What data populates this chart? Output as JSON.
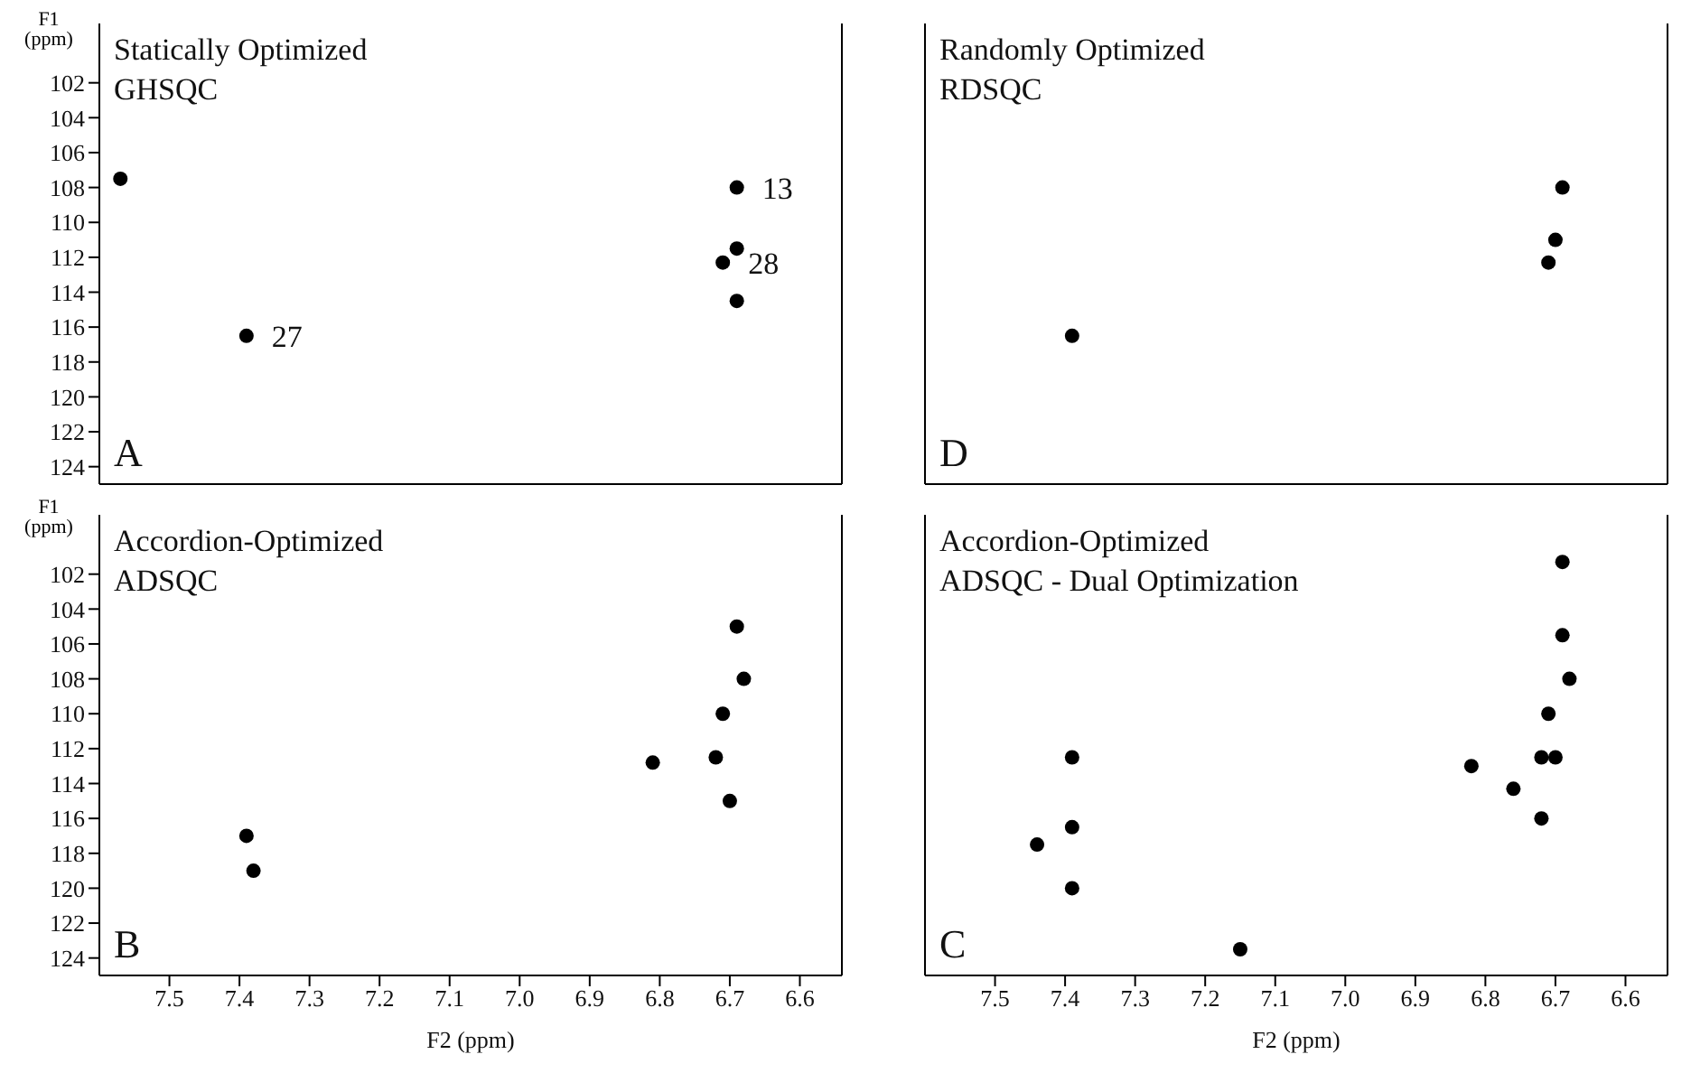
{
  "chart_data": [
    {
      "type": "scatter",
      "title": "Statically Optimized",
      "subtitle": "GHSQC",
      "ylabel": "F1 (ppm)",
      "annotations": [
        "A",
        {
          "text": "13",
          "x": 6.69,
          "y": 108
        },
        {
          "text": "27",
          "x": 7.39,
          "y": 116.5
        },
        {
          "text": "28",
          "x": 6.71,
          "y": 112.3
        }
      ],
      "x": [
        7.57,
        7.39,
        6.69,
        6.71,
        6.69,
        6.69
      ],
      "values": [
        107.5,
        116.5,
        108,
        112.3,
        111.5,
        114.5
      ],
      "color": "#000000",
      "marker": "circle",
      "xlim": [
        7.6,
        6.54
      ],
      "xticks": [
        7.5,
        7.4,
        7.3,
        7.2,
        7.1,
        7.0,
        6.9,
        6.8,
        6.7,
        6.6
      ],
      "ylim": [
        125,
        98.6
      ],
      "yticks": [
        102,
        104,
        106,
        108,
        110,
        112,
        114,
        116,
        118,
        120,
        122,
        124
      ],
      "tick_labels": "y",
      "grid": false,
      "legend": false
    },
    {
      "type": "scatter",
      "title": "Randomly Optimized",
      "subtitle": "RDSQC",
      "annotations": [
        "D"
      ],
      "x": [
        7.39,
        6.69,
        6.71,
        6.7
      ],
      "values": [
        116.5,
        108,
        112.3,
        111
      ],
      "color": "#000000",
      "marker": "circle",
      "xlim": [
        7.6,
        6.54
      ],
      "xticks": [
        7.5,
        7.4,
        7.3,
        7.2,
        7.1,
        7.0,
        6.9,
        6.8,
        6.7,
        6.6
      ],
      "ylim": [
        125,
        98.6
      ],
      "yticks": [
        102,
        104,
        106,
        108,
        110,
        112,
        114,
        116,
        118,
        120,
        122,
        124
      ],
      "tick_labels": false,
      "grid": false,
      "legend": false
    },
    {
      "type": "scatter",
      "title": "Accordion-Optimized",
      "subtitle": "ADSQC",
      "xlabel": "F2 (ppm)",
      "ylabel": "F1 (ppm)",
      "annotations": [
        "B"
      ],
      "x": [
        7.39,
        7.38,
        6.69,
        6.68,
        6.71,
        6.72,
        6.7,
        6.81
      ],
      "values": [
        117,
        119,
        105,
        108,
        110,
        112.5,
        115,
        112.8
      ],
      "color": "#000000",
      "marker": "circle",
      "xlim": [
        7.6,
        6.54
      ],
      "xticks": [
        7.5,
        7.4,
        7.3,
        7.2,
        7.1,
        {
          "value": 7,
          "label": "7.0"
        },
        6.9,
        6.8,
        6.7,
        6.6
      ],
      "ylim": [
        125,
        98.6
      ],
      "yticks": [
        102,
        104,
        106,
        108,
        110,
        112,
        114,
        116,
        118,
        120,
        122,
        124
      ],
      "grid": false,
      "legend": false
    },
    {
      "type": "scatter",
      "title": "Accordion-Optimized",
      "subtitle": "ADSQC - Dual Optimization",
      "xlabel": "F2 (ppm)",
      "annotations": [
        "C"
      ],
      "x": [
        7.39,
        7.39,
        7.39,
        7.44,
        7.15,
        6.69,
        6.69,
        6.68,
        6.71,
        6.72,
        6.7,
        6.72,
        6.82,
        6.76
      ],
      "values": [
        112.5,
        116.5,
        120,
        117.5,
        123.5,
        101.3,
        105.5,
        108,
        110,
        112.5,
        112.5,
        116,
        113,
        114.3
      ],
      "color": "#000000",
      "marker": "circle",
      "xlim": [
        7.6,
        6.54
      ],
      "xticks": [
        7.5,
        7.4,
        7.3,
        7.2,
        7.1,
        {
          "value": 7,
          "label": "7.0"
        },
        6.9,
        6.8,
        6.7,
        6.6
      ],
      "ylim": [
        125,
        98.6
      ],
      "yticks": [
        102,
        104,
        106,
        108,
        110,
        112,
        114,
        116,
        118,
        120,
        122,
        124
      ],
      "tick_labels": "x",
      "grid": false,
      "legend": false
    }
  ]
}
